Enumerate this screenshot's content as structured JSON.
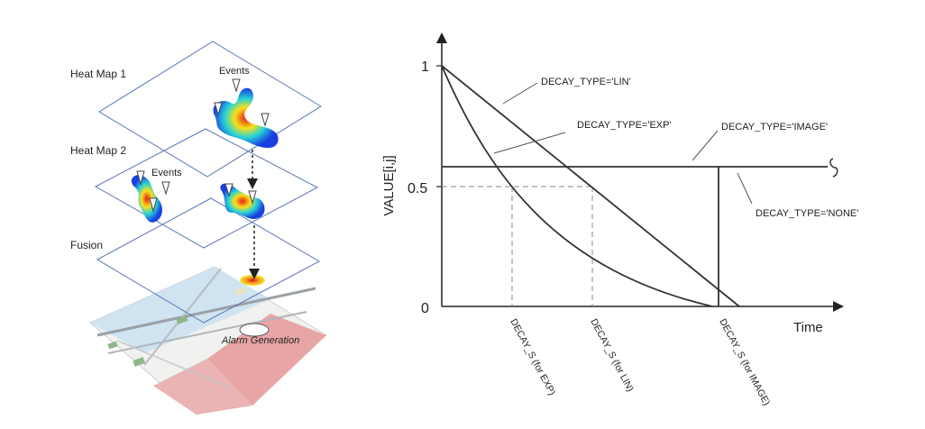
{
  "left_panel": {
    "layer_labels": [
      "Heat Map 1",
      "Heat Map 2",
      "Fusion"
    ],
    "events_label_1": "Events",
    "events_label_2": "Events",
    "alarm_label": "Alarm Generation"
  },
  "right_panel": {
    "y_axis_label": "VALUE[i,j]",
    "x_axis_label": "Time",
    "y_ticks": [
      "1",
      "0.5",
      "0"
    ],
    "curve_labels": {
      "lin": "DECAY_TYPE='LIN'",
      "exp": "DECAY_TYPE='EXP'",
      "image": "DECAY_TYPE='IMAGE'",
      "none": "DECAY_TYPE='NONE'"
    },
    "x_marker_labels": {
      "exp": "DECAY_S (for EXP)",
      "lin": "DECAY_S (for LIN)",
      "image": "DECAY_S (for IMAGE)"
    }
  },
  "colors": {
    "line": "#333333",
    "heat_hot": "#e8211a",
    "heat_cool": "#1a3ee0",
    "map_red": "#e88f92"
  }
}
